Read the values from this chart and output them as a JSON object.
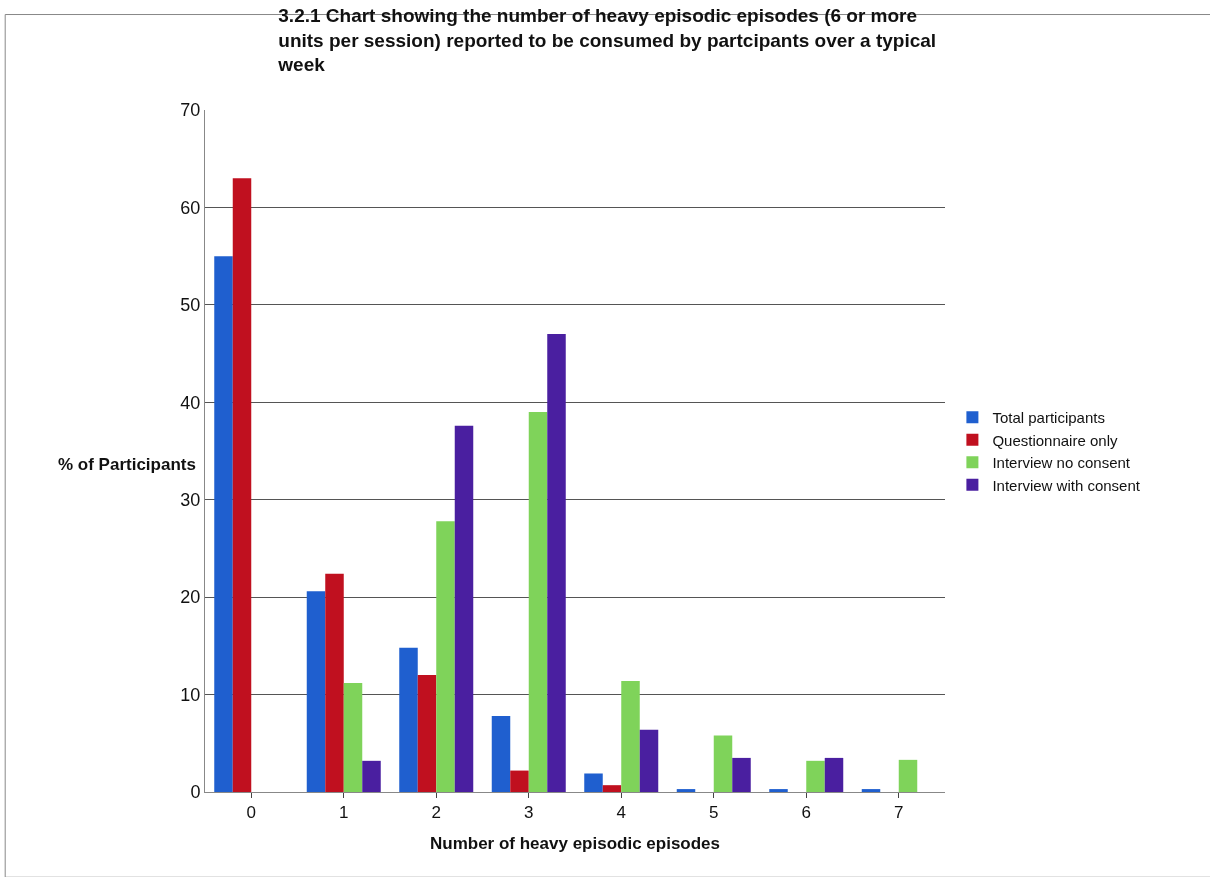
{
  "chart_data": {
    "type": "bar",
    "title": "3.2.1 Chart showing the number of heavy episodic episodes (6 or more units per session) reported to be consumed by partcipants over a typical week",
    "xlabel": "Number of heavy episodic episodes",
    "ylabel": "% of Participants",
    "categories": [
      "0",
      "1",
      "2",
      "3",
      "4",
      "5",
      "6",
      "7"
    ],
    "series": [
      {
        "name": "Total participants",
        "color": "#1f5fcf",
        "values": [
          55,
          20.6,
          14.8,
          7.8,
          1.9,
          0.3,
          0.3,
          0.3
        ]
      },
      {
        "name": "Questionnaire only",
        "color": "#c0101f",
        "values": [
          63,
          22.4,
          12,
          2.2,
          0.7,
          0,
          0,
          0
        ]
      },
      {
        "name": "Interview no consent",
        "color": "#7fd35a",
        "values": [
          0,
          11.2,
          27.8,
          39,
          11.4,
          5.8,
          3.2,
          3.3
        ]
      },
      {
        "name": "Interview with consent",
        "color": "#4a1fa0",
        "values": [
          0,
          3.2,
          37.6,
          47,
          6.4,
          3.5,
          3.5,
          0
        ]
      }
    ],
    "ylim": [
      0,
      70
    ],
    "yticks": [
      0,
      10,
      20,
      30,
      40,
      50,
      60,
      70
    ],
    "grid": "y",
    "legend": "right"
  }
}
